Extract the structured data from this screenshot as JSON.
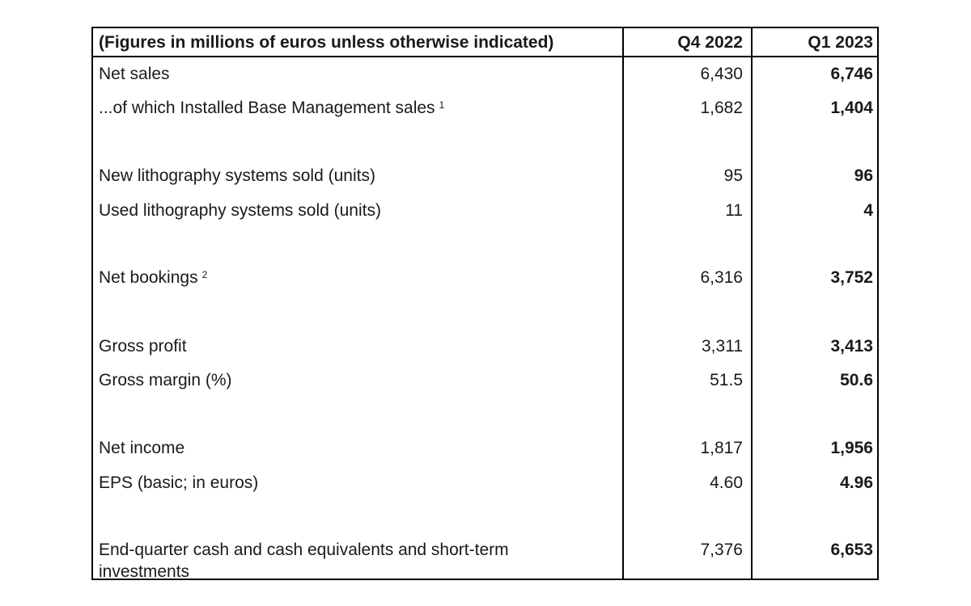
{
  "header": {
    "label": "(Figures in millions of euros unless otherwise indicated)",
    "col1": "Q4 2022",
    "col2": "Q1 2023"
  },
  "rows": [
    {
      "label": "Net sales",
      "q4": "6,430",
      "q1": "6,746"
    },
    {
      "label": "...of which Installed Base Management sales",
      "note": "1",
      "q4": "1,682",
      "q1": "1,404"
    },
    {
      "label": "New lithography systems sold (units)",
      "q4": "95",
      "q1": "96"
    },
    {
      "label": "Used lithography systems sold (units)",
      "q4": "11",
      "q1": "4"
    },
    {
      "label": "Net bookings",
      "note": "2",
      "q4": "6,316",
      "q1": "3,752"
    },
    {
      "label": "Gross profit",
      "q4": "3,311",
      "q1": "3,413"
    },
    {
      "label": "Gross margin (%)",
      "q4": "51.5",
      "q1": "50.6"
    },
    {
      "label": "Net income",
      "q4": "1,817",
      "q1": "1,956"
    },
    {
      "label": "EPS (basic; in euros)",
      "q4": "4.60",
      "q1": "4.96"
    },
    {
      "label": "End-quarter cash and cash equivalents and short-term investments",
      "q4": "7,376",
      "q1": "6,653"
    }
  ]
}
